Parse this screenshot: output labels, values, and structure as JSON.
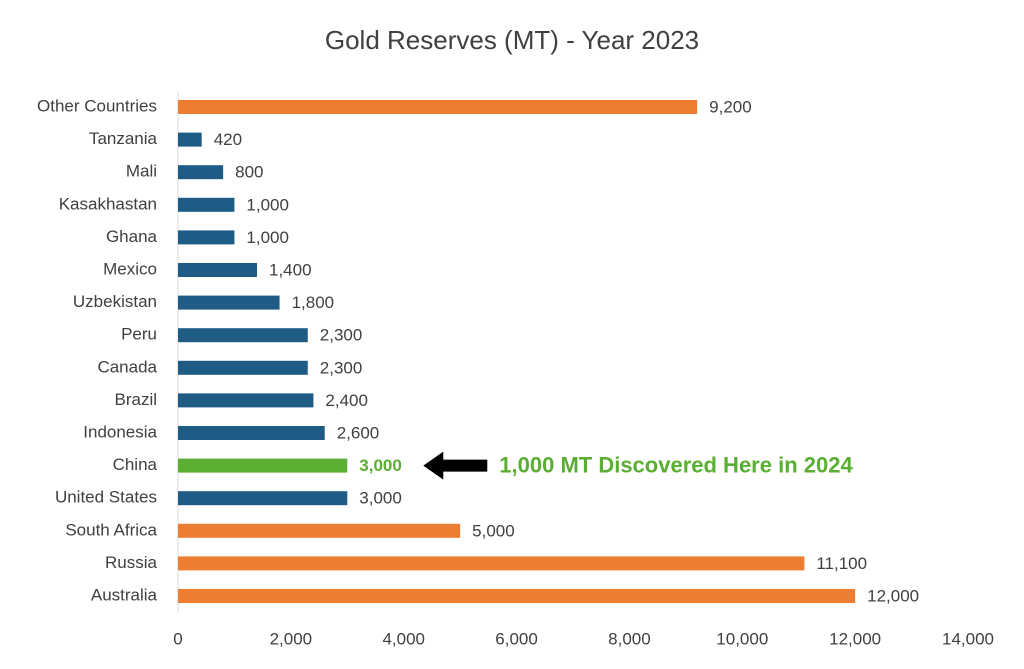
{
  "chart_data": {
    "type": "bar",
    "orientation": "horizontal",
    "title": "Gold Reserves (MT) - Year 2023",
    "categories": [
      "Other Countries",
      "Tanzania",
      "Mali",
      "Kasakhastan",
      "Ghana",
      "Mexico",
      "Uzbekistan",
      "Peru",
      "Canada",
      "Brazil",
      "Indonesia",
      "China",
      "United States",
      "South Africa",
      "Russia",
      "Australia"
    ],
    "values": [
      9200,
      420,
      800,
      1000,
      1000,
      1400,
      1800,
      2300,
      2300,
      2400,
      2600,
      3000,
      3000,
      5000,
      11100,
      12000
    ],
    "value_labels": [
      "9,200",
      "420",
      "800",
      "1,000",
      "1,000",
      "1,400",
      "1,800",
      "2,300",
      "2,300",
      "2,400",
      "2,600",
      "3,000",
      "3,000",
      "5,000",
      "11,100",
      "12,000"
    ],
    "colors": [
      "#ED7D31",
      "#1F5C85",
      "#1F5C85",
      "#1F5C85",
      "#1F5C85",
      "#1F5C85",
      "#1F5C85",
      "#1F5C85",
      "#1F5C85",
      "#1F5C85",
      "#1F5C85",
      "#5AAE32",
      "#1F5C85",
      "#ED7D31",
      "#ED7D31",
      "#ED7D31"
    ],
    "xlim": [
      0,
      14000
    ],
    "xticks": [
      0,
      {
        "value": 2000,
        "label": "2,000"
      },
      {
        "value": 4000,
        "label": "4,000"
      },
      {
        "value": 6000,
        "label": "6,000"
      },
      {
        "value": 8000,
        "label": "8,000"
      },
      {
        "value": 10000,
        "label": "10,000"
      },
      {
        "value": 12000,
        "label": "12,000"
      },
      {
        "value": 14000,
        "label": "14,000"
      }
    ],
    "annotation": {
      "text": "1,000 MT Discovered Here in 2024",
      "target": "China",
      "color": "#5AAE32"
    }
  }
}
